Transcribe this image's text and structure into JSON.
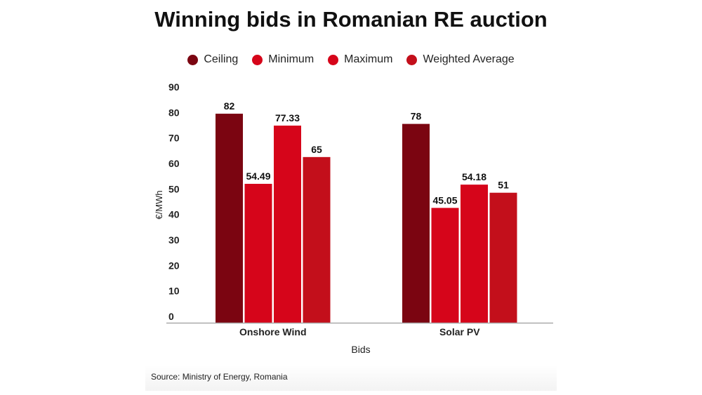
{
  "chart_data": {
    "type": "bar",
    "title": "Winning bids in Romanian RE auction",
    "xlabel": "Bids",
    "ylabel": "€/MWh",
    "ylim": [
      0,
      90
    ],
    "yticks": [
      "0",
      "10",
      "20",
      "30",
      "40",
      "50",
      "60",
      "70",
      "80",
      "90"
    ],
    "grid": false,
    "legend_position": "top",
    "categories": [
      "Onshore Wind",
      "Solar PV"
    ],
    "series": [
      {
        "name": "Ceiling",
        "color": "#7b0511",
        "values": [
          82,
          78
        ],
        "labels": [
          "82",
          "78"
        ]
      },
      {
        "name": "Minimum",
        "color": "#d6051a",
        "values": [
          54.49,
          45.05
        ],
        "labels": [
          "54.49",
          "45.05"
        ]
      },
      {
        "name": "Maximum",
        "color": "#d6051a",
        "values": [
          77.33,
          54.18
        ],
        "labels": [
          "77.33",
          "54.18"
        ]
      },
      {
        "name": "Weighted Average",
        "color": "#c30f1b",
        "values": [
          65,
          51
        ],
        "labels": [
          "65",
          "51"
        ]
      }
    ]
  },
  "source": "Source: Ministry of Energy, Romania"
}
